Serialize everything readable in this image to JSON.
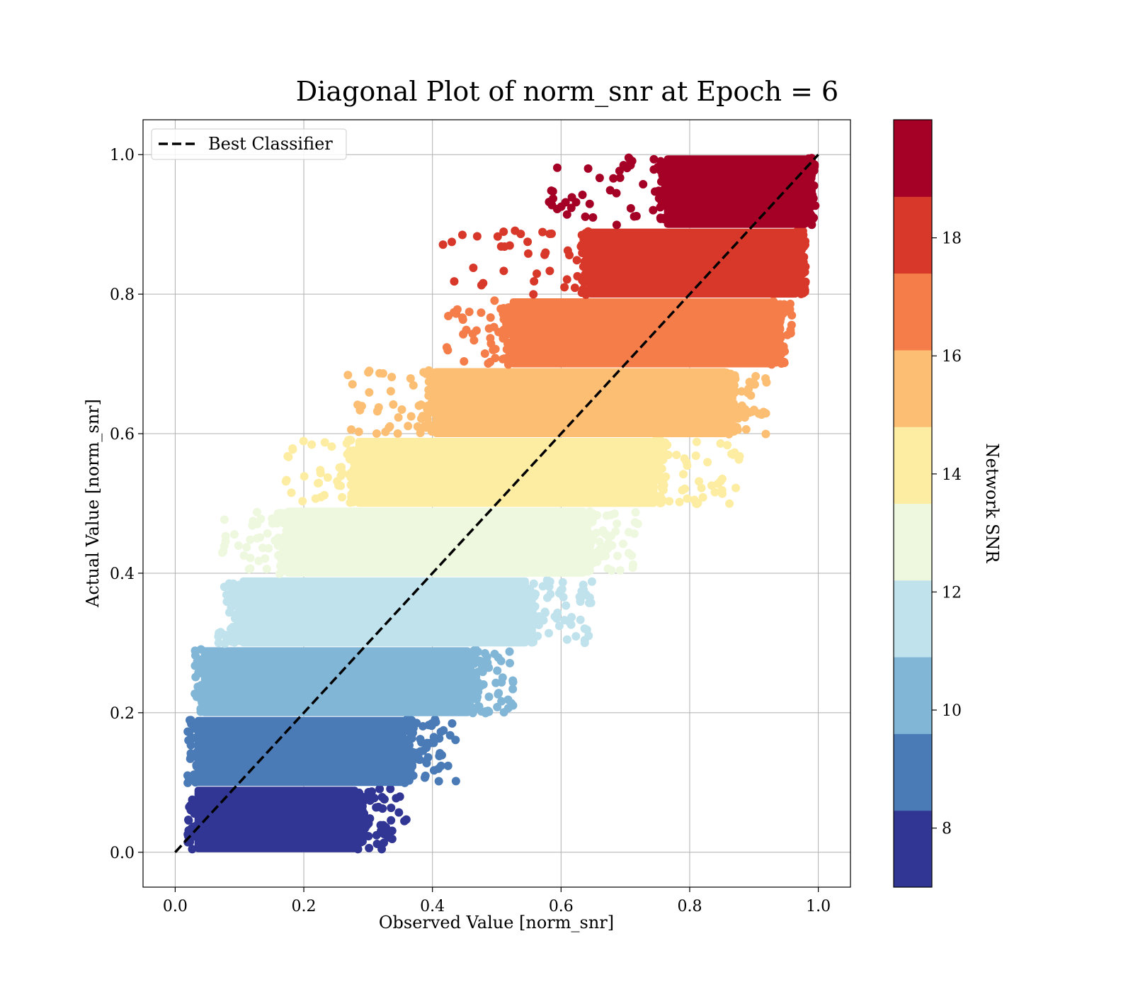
{
  "chart_data": {
    "type": "scatter",
    "title": "Diagonal Plot of norm_snr at Epoch = 6",
    "xlabel": "Observed Value [norm_snr]",
    "ylabel": "Actual Value [norm_snr]",
    "xlim": [
      -0.05,
      1.05
    ],
    "ylim": [
      -0.05,
      1.05
    ],
    "xticks": [
      "0.0",
      "0.2",
      "0.4",
      "0.6",
      "0.8",
      "1.0"
    ],
    "yticks": [
      "0.0",
      "0.2",
      "0.4",
      "0.6",
      "0.8",
      "1.0"
    ],
    "grid": true,
    "legend": {
      "position": "top-left",
      "entries": [
        {
          "label": "Best Classifier",
          "style": "dashed",
          "color": "#000000"
        }
      ]
    },
    "reference_line": {
      "x": [
        0.0,
        1.0
      ],
      "y": [
        0.0,
        1.0
      ],
      "style": "dashed",
      "color": "#000000"
    },
    "colorbar": {
      "label": "Network SNR",
      "range": [
        7,
        20
      ],
      "ticks": [
        "8",
        "10",
        "12",
        "14",
        "16",
        "18"
      ],
      "bands": [
        {
          "from": 7.0,
          "to": 8.3,
          "color": "#313695"
        },
        {
          "from": 8.3,
          "to": 9.6,
          "color": "#4a7bb7"
        },
        {
          "from": 9.6,
          "to": 10.9,
          "color": "#82b6d6"
        },
        {
          "from": 10.9,
          "to": 12.2,
          "color": "#bfe2ed"
        },
        {
          "from": 12.2,
          "to": 13.5,
          "color": "#eef8df"
        },
        {
          "from": 13.5,
          "to": 14.8,
          "color": "#fdeda3"
        },
        {
          "from": 14.8,
          "to": 16.1,
          "color": "#fcbe72"
        },
        {
          "from": 16.1,
          "to": 17.4,
          "color": "#f47d4a"
        },
        {
          "from": 17.4,
          "to": 18.7,
          "color": "#d8382a"
        },
        {
          "from": 18.7,
          "to": 20.0,
          "color": "#a50026"
        }
      ]
    },
    "scatter_bands": [
      {
        "y": [
          0.0,
          0.095
        ],
        "x_core": [
          0.03,
          0.285
        ],
        "x_spread": [
          0.03,
          0.36
        ],
        "color": "#313695"
      },
      {
        "y": [
          0.095,
          0.195
        ],
        "x_core": [
          0.03,
          0.36
        ],
        "x_spread": [
          0.03,
          0.44
        ],
        "color": "#4a7bb7"
      },
      {
        "y": [
          0.195,
          0.295
        ],
        "x_core": [
          0.04,
          0.46
        ],
        "x_spread": [
          0.04,
          0.53
        ],
        "color": "#82b6d6"
      },
      {
        "y": [
          0.295,
          0.395
        ],
        "x_core": [
          0.1,
          0.55
        ],
        "x_spread": [
          0.06,
          0.65
        ],
        "color": "#bfe2ed"
      },
      {
        "y": [
          0.395,
          0.495
        ],
        "x_core": [
          0.17,
          0.64
        ],
        "x_spread": [
          0.06,
          0.72
        ],
        "color": "#eef8df"
      },
      {
        "y": [
          0.495,
          0.595
        ],
        "x_core": [
          0.28,
          0.75
        ],
        "x_spread": [
          0.17,
          0.89
        ],
        "color": "#fdeda3"
      },
      {
        "y": [
          0.595,
          0.695
        ],
        "x_core": [
          0.4,
          0.86
        ],
        "x_spread": [
          0.26,
          0.92
        ],
        "color": "#fcbe72"
      },
      {
        "y": [
          0.695,
          0.795
        ],
        "x_core": [
          0.52,
          0.93
        ],
        "x_spread": [
          0.42,
          0.96
        ],
        "color": "#f47d4a"
      },
      {
        "y": [
          0.795,
          0.895
        ],
        "x_core": [
          0.64,
          0.97
        ],
        "x_spread": [
          0.41,
          0.98
        ],
        "color": "#d8382a"
      },
      {
        "y": [
          0.895,
          1.0
        ],
        "x_core": [
          0.76,
          0.985
        ],
        "x_spread": [
          0.58,
          0.99
        ],
        "color": "#a50026"
      }
    ]
  }
}
